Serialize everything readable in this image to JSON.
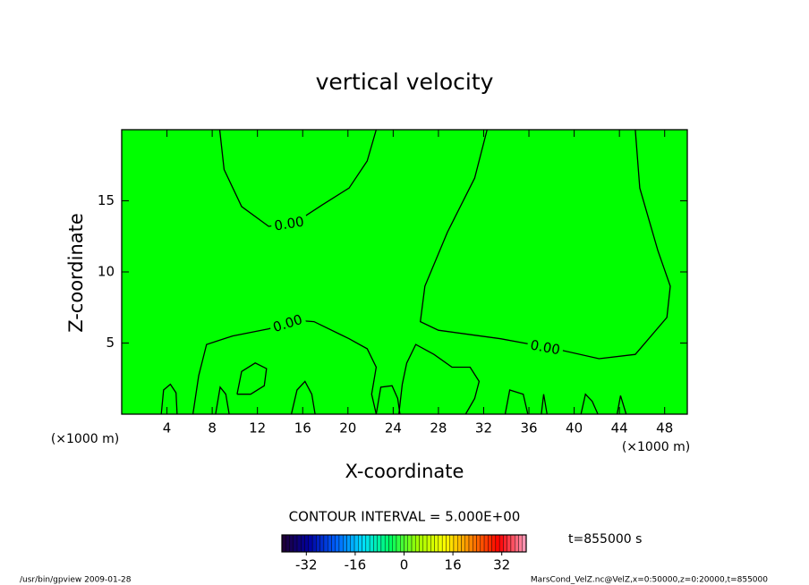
{
  "chart_data": {
    "type": "contour",
    "title": "vertical velocity",
    "xlabel": "X-coordinate",
    "ylabel": "Z-coordinate",
    "x_unit": "(×1000 m)",
    "y_unit": "(×1000 m)",
    "xlim": [
      0,
      50
    ],
    "ylim": [
      0,
      20
    ],
    "xticks": [
      4,
      8,
      12,
      16,
      20,
      24,
      28,
      32,
      36,
      40,
      44,
      48
    ],
    "yticks": [
      5,
      10,
      15
    ],
    "fill_color": "#00ff00",
    "line_color": "#000000",
    "contours": [
      {
        "level": 0,
        "label": "0.00",
        "x": [
          8.66,
          9.05,
          10.6,
          13.0,
          15.4,
          17.7,
          20.1,
          21.7,
          22.5
        ],
        "y": [
          20,
          17.2,
          14.6,
          13.2,
          13.5,
          14.7,
          15.9,
          17.8,
          20
        ]
      },
      {
        "level": 0,
        "label": "0.00",
        "x": [
          32.3,
          31.2,
          28.8,
          26.8,
          26.4,
          28.0,
          33.5,
          38.3,
          42.2,
          45.4,
          48.2,
          48.5,
          47.4,
          45.8,
          45.4
        ],
        "y": [
          20,
          16.6,
          12.8,
          9.0,
          6.5,
          5.9,
          5.3,
          4.6,
          3.9,
          4.2,
          6.8,
          9.0,
          11.5,
          15.9,
          20
        ]
      },
      {
        "level": 0,
        "label": "0.00",
        "x": [
          6.3,
          6.8,
          7.5,
          9.8,
          13.0,
          15.4,
          17.0,
          20.1,
          21.7,
          22.5,
          22.1,
          22.5
        ],
        "y": [
          0,
          2.7,
          4.9,
          5.5,
          6.0,
          6.6,
          6.5,
          5.3,
          4.6,
          3.3,
          1.4,
          0
        ]
      },
      {
        "level": 0,
        "x": [
          3.5,
          3.7,
          4.3,
          4.8,
          4.9
        ],
        "y": [
          0,
          1.7,
          2.1,
          1.5,
          0
        ]
      },
      {
        "level": 0,
        "x": [
          10.2,
          10.6,
          11.8,
          12.8,
          12.6,
          11.4,
          10.2
        ],
        "y": [
          1.4,
          3.0,
          3.6,
          3.2,
          2.0,
          1.4,
          1.4
        ]
      },
      {
        "level": 0,
        "x": [
          24.5,
          24.8,
          25.2,
          26.0,
          27.6,
          29.2,
          30.8,
          31.6,
          31.2,
          30.4
        ],
        "y": [
          0,
          2.1,
          3.6,
          4.9,
          4.2,
          3.3,
          3.3,
          2.3,
          1.1,
          0
        ]
      },
      {
        "level": 0,
        "x": [
          33.9,
          34.3,
          35.5,
          35.9
        ],
        "y": [
          0,
          1.7,
          1.4,
          0
        ]
      },
      {
        "level": 0,
        "x": [
          37.1,
          37.3,
          37.6
        ],
        "y": [
          0,
          1.4,
          0
        ]
      },
      {
        "level": 0,
        "x": [
          40.6,
          41.0,
          41.6,
          42.1
        ],
        "y": [
          0,
          1.4,
          0.9,
          0
        ]
      },
      {
        "level": 0,
        "x": [
          43.8,
          44.1,
          44.6
        ],
        "y": [
          0,
          1.3,
          0
        ]
      },
      {
        "level": 0,
        "x": [
          8.3,
          8.7,
          9.2,
          9.5
        ],
        "y": [
          0,
          1.9,
          1.4,
          0
        ]
      },
      {
        "level": 0,
        "x": [
          15.0,
          15.5,
          16.2,
          16.8,
          17.1
        ],
        "y": [
          0,
          1.7,
          2.3,
          1.4,
          0
        ]
      },
      {
        "level": 0,
        "x": [
          22.5,
          22.9,
          23.9,
          24.4,
          24.6
        ],
        "y": [
          0,
          1.9,
          2.0,
          1.1,
          0
        ]
      }
    ],
    "contour_interval": "CONTOUR INTERVAL = 5.000E+00",
    "time_label": "t=855000 s",
    "footer_left": "/usr/bin/gpview  2009-01-28",
    "footer_right": "MarsCond_VelZ.nc@VelZ,x=0:50000,z=0:20000,t=855000",
    "colorbar": {
      "clim": [
        -40,
        40
      ],
      "interval": 5,
      "ticks": [
        -32,
        -16,
        0,
        16,
        32
      ],
      "colors": [
        "#200030",
        "#0000a0",
        "#0060ff",
        "#00e0ff",
        "#00ff60",
        "#a0ff00",
        "#ffff00",
        "#ff8000",
        "#ff0000",
        "#ffa0c0"
      ]
    }
  }
}
